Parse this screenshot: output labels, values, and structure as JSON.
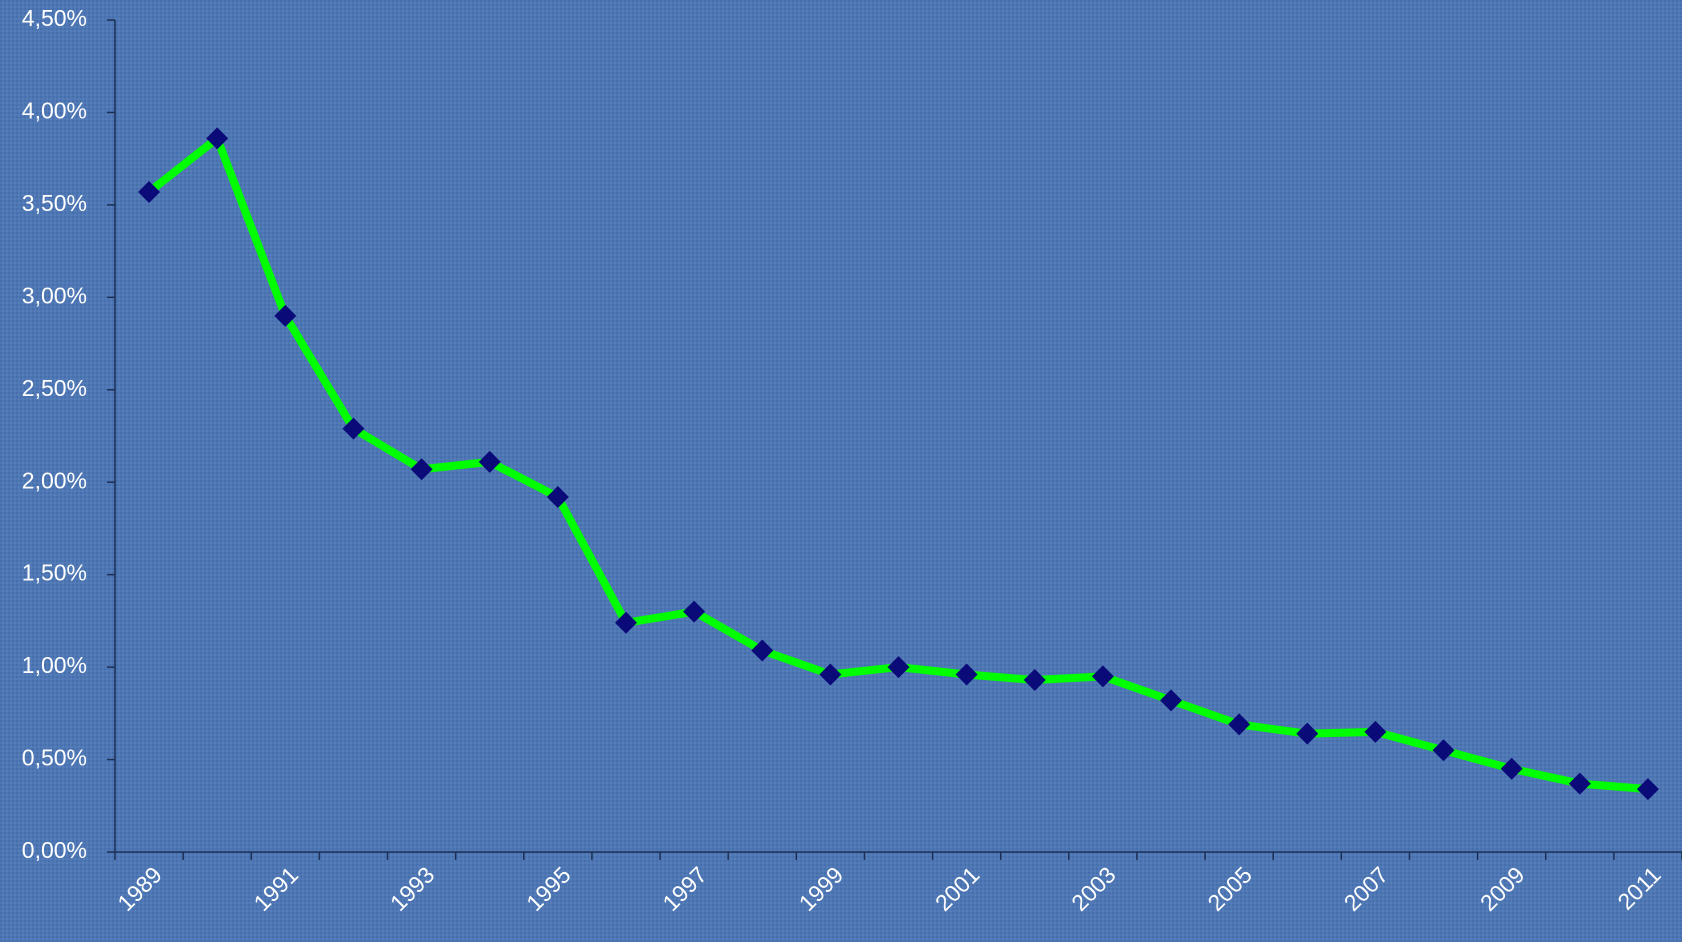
{
  "chart_data": {
    "type": "line",
    "categories": [
      "1989",
      null,
      "1991",
      null,
      "1993",
      null,
      "1995",
      null,
      "1997",
      null,
      "1999",
      null,
      "2001",
      null,
      "2003",
      null,
      "2005",
      null,
      "2007",
      null,
      "2009",
      null,
      "2011"
    ],
    "values": [
      3.57,
      3.86,
      2.9,
      2.29,
      2.07,
      2.11,
      1.92,
      1.24,
      1.3,
      1.09,
      0.96,
      1.0,
      0.96,
      0.93,
      0.95,
      0.82,
      0.69,
      0.64,
      0.65,
      0.55,
      0.45,
      0.37,
      0.34
    ],
    "color": "#00ff00",
    "marker_color": "#0a0a78",
    "ylim": [
      0,
      4.5
    ],
    "yticks": [
      {
        "value": 0,
        "label": "0,00%"
      },
      {
        "value": 0.5,
        "label": "0,50%"
      },
      {
        "value": 1,
        "label": "1,00%"
      },
      {
        "value": 1.5,
        "label": "1,50%"
      },
      {
        "value": 2,
        "label": "2,00%"
      },
      {
        "value": 2.5,
        "label": "2,50%"
      },
      {
        "value": 3,
        "label": "3,00%"
      },
      {
        "value": 3.5,
        "label": "3,50%"
      },
      {
        "value": 4,
        "label": "4,00%"
      },
      {
        "value": 4.5,
        "label": "4,50%"
      }
    ],
    "grid": false
  }
}
